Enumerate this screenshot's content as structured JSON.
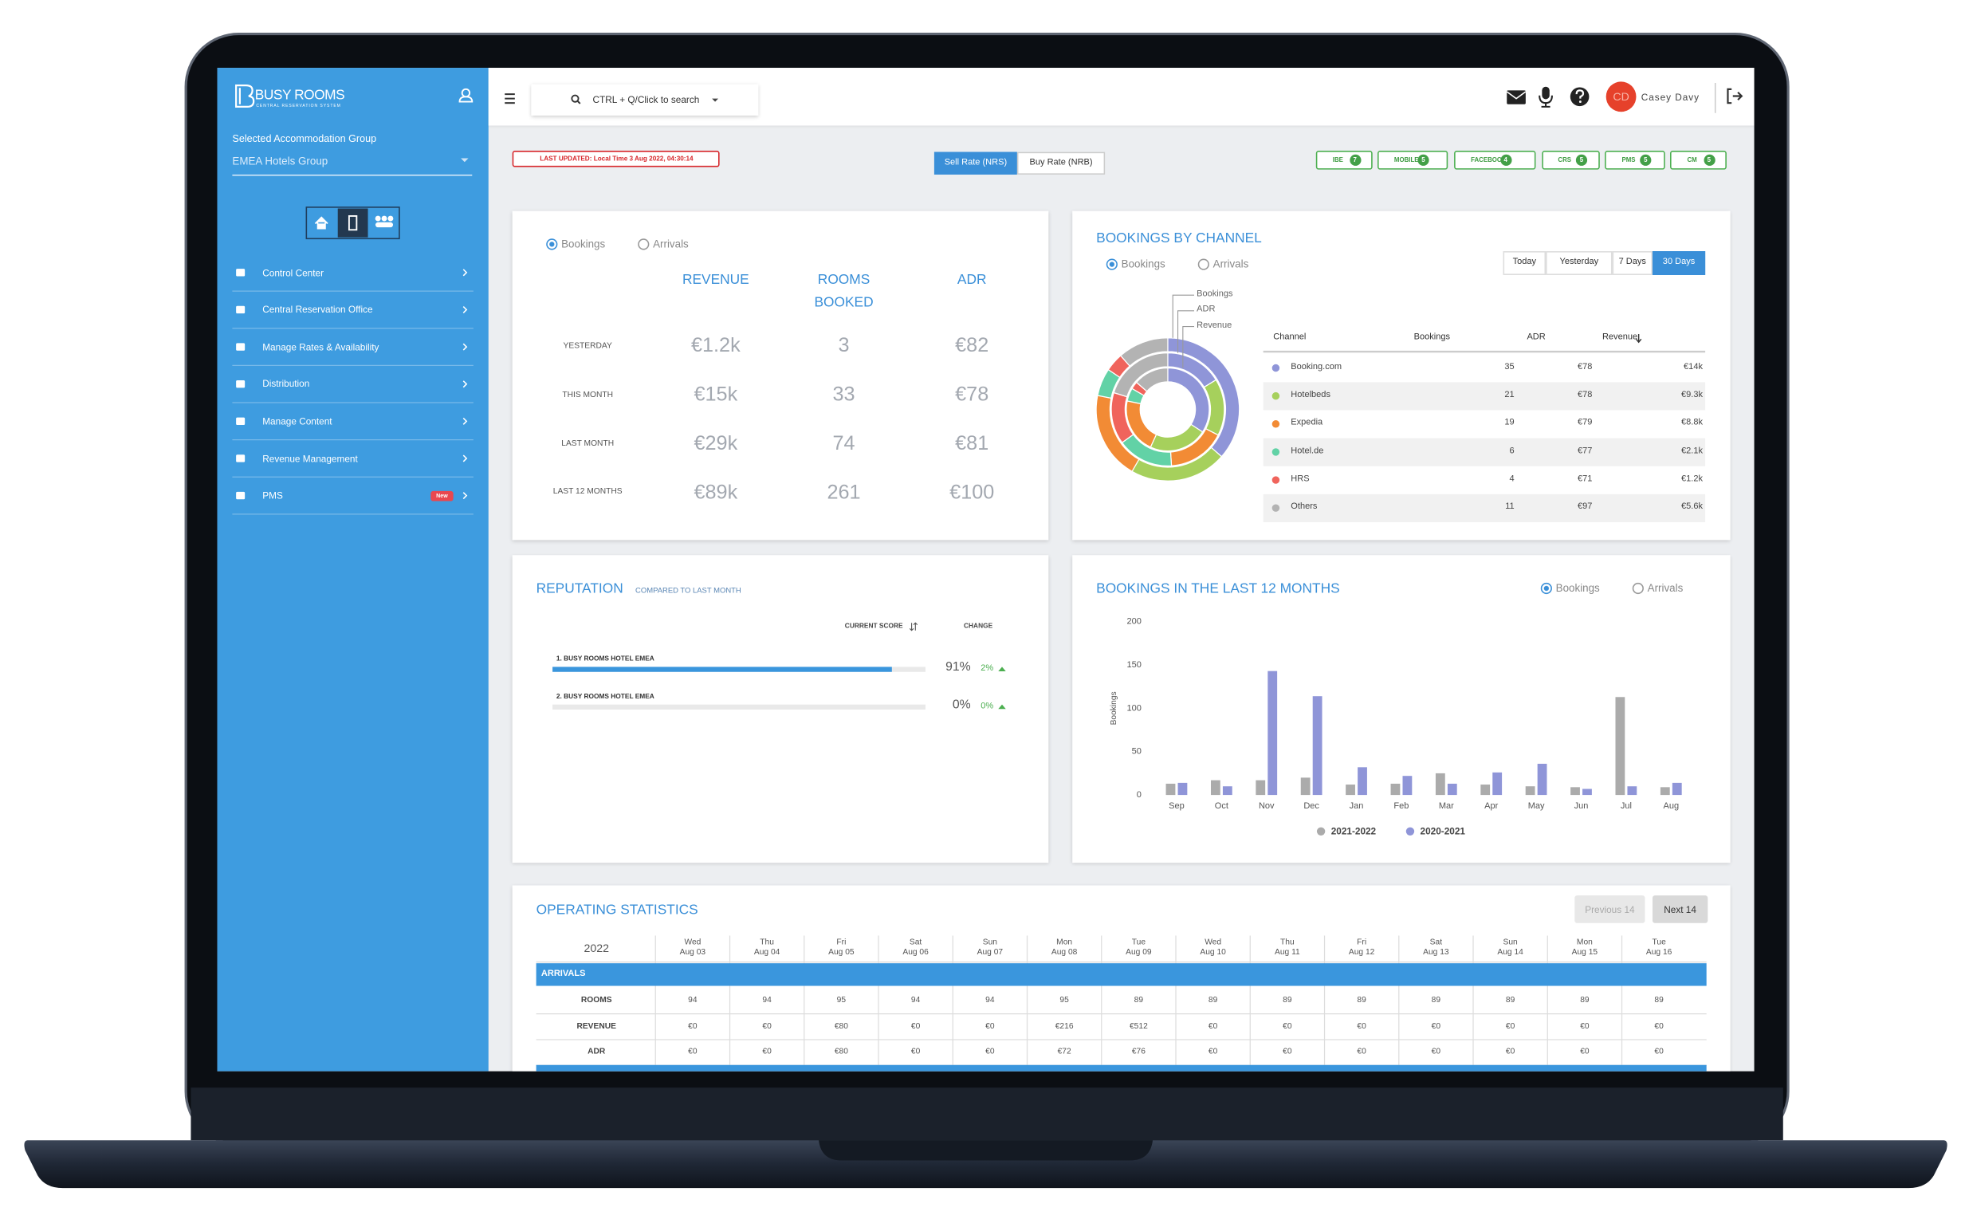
{
  "brand": {
    "name": "BUSY ROOMS",
    "tagline": "CENTRAL RESERVATION SYSTEM"
  },
  "sidebar": {
    "group_label": "Selected Accommodation Group",
    "group_value": "EMEA Hotels Group",
    "menu": [
      "Control Center",
      "Central Reservation Office",
      "Manage Rates & Availability",
      "Distribution",
      "Manage Content",
      "Revenue Management",
      "PMS"
    ],
    "badge": "New"
  },
  "topbar": {
    "search": "CTRL + Q/Click to search",
    "initials": "CD",
    "user": "Casey Davy"
  },
  "toolbar": {
    "last_updated": "LAST UPDATED: Local Time 3 Aug 2022, 04:30:14",
    "rate_tabs": [
      "Sell Rate (NRS)",
      "Buy Rate (NRB)"
    ],
    "channels": [
      {
        "name": "IBE",
        "count": 7
      },
      {
        "name": "MOBILE",
        "count": 5
      },
      {
        "name": "FACEBOOK",
        "count": 4
      },
      {
        "name": "CRS",
        "count": 5
      },
      {
        "name": "PMS",
        "count": 5
      },
      {
        "name": "CM",
        "count": 5
      }
    ]
  },
  "summary": {
    "radios": [
      "Bookings",
      "Arrivals"
    ],
    "columns": [
      "REVENUE",
      "ROOMS BOOKED",
      "ADR"
    ],
    "rows": [
      {
        "label": "YESTERDAY",
        "cells": [
          "€1.2k",
          "3",
          "€82"
        ]
      },
      {
        "label": "THIS MONTH",
        "cells": [
          "€15k",
          "33",
          "€78"
        ]
      },
      {
        "label": "LAST MONTH",
        "cells": [
          "€29k",
          "74",
          "€81"
        ]
      },
      {
        "label": "LAST 12 MONTHS",
        "cells": [
          "€89k",
          "261",
          "€100"
        ]
      }
    ]
  },
  "channels_panel": {
    "title": "BOOKINGS BY CHANNEL",
    "radios": [
      "Bookings",
      "Arrivals"
    ],
    "periods": [
      "Today",
      "Yesterday",
      "7 Days",
      "30 Days"
    ],
    "ring_labels": [
      "Bookings",
      "ADR",
      "Revenue"
    ],
    "headers": [
      "Channel",
      "Bookings",
      "ADR",
      "Revenue"
    ],
    "names": [
      "Booking.com",
      "Hotelbeds",
      "Expedia",
      "Hotel.de",
      "HRS",
      "Others"
    ],
    "colors": [
      "#8f95d8",
      "#a6d05c",
      "#f28b35",
      "#62d2a6",
      "#f0645c",
      "#b3b3b3"
    ],
    "bookings": [
      35,
      21,
      19,
      6,
      4,
      11
    ],
    "adr": [
      78,
      78,
      79,
      77,
      71,
      97
    ],
    "adr_labels": [
      "€78",
      "€78",
      "€79",
      "€77",
      "€71",
      "€97"
    ],
    "revenue": [
      14000,
      9300,
      8800,
      2100,
      1200,
      5600
    ],
    "revenue_labels": [
      "€14k",
      "€9.3k",
      "€8.8k",
      "€2.1k",
      "€1.2k",
      "€5.6k"
    ]
  },
  "reputation": {
    "title": "REPUTATION",
    "subtitle": "COMPARED TO LAST MONTH",
    "headers": [
      "CURRENT SCORE",
      "CHANGE"
    ],
    "hotels": [
      {
        "name": "1. BUSY ROOMS HOTEL EMEA",
        "score": 91,
        "score_label": "91%",
        "change": "2%"
      },
      {
        "name": "2. BUSY ROOMS HOTEL EMEA",
        "score": 0,
        "score_label": "0%",
        "change": "0%"
      }
    ]
  },
  "bookings_chart": {
    "type": "bar",
    "title": "BOOKINGS IN THE LAST 12 MONTHS",
    "radios": [
      "Bookings",
      "Arrivals"
    ],
    "y_label": "Bookings",
    "categories": [
      "Sep",
      "Oct",
      "Nov",
      "Dec",
      "Jan",
      "Feb",
      "Mar",
      "Apr",
      "May",
      "Jun",
      "Jul",
      "Aug"
    ],
    "series": [
      {
        "name": "2021-2022",
        "color": "#ababab",
        "values": [
          13,
          17,
          17,
          20,
          12,
          13,
          25,
          12,
          10,
          9,
          113,
          9
        ]
      },
      {
        "name": "2020-2021",
        "color": "#8f95d8",
        "values": [
          14,
          10,
          143,
          114,
          32,
          22,
          13,
          26,
          36,
          7,
          10,
          14
        ]
      }
    ],
    "ylim": [
      0,
      200
    ],
    "yticks": [
      0,
      50,
      100,
      150,
      200
    ],
    "grid": false
  },
  "operating": {
    "title": "OPERATING STATISTICS",
    "buttons": [
      "Previous 14",
      "Next 14"
    ],
    "year": "2022",
    "days": [
      {
        "day": "Wed",
        "date": "Aug 03"
      },
      {
        "day": "Thu",
        "date": "Aug 04"
      },
      {
        "day": "Fri",
        "date": "Aug 05"
      },
      {
        "day": "Sat",
        "date": "Aug 06"
      },
      {
        "day": "Sun",
        "date": "Aug 07"
      },
      {
        "day": "Mon",
        "date": "Aug 08"
      },
      {
        "day": "Tue",
        "date": "Aug 09"
      },
      {
        "day": "Wed",
        "date": "Aug 10"
      },
      {
        "day": "Thu",
        "date": "Aug 11"
      },
      {
        "day": "Fri",
        "date": "Aug 12"
      },
      {
        "day": "Sat",
        "date": "Aug 13"
      },
      {
        "day": "Sun",
        "date": "Aug 14"
      },
      {
        "day": "Mon",
        "date": "Aug 15"
      },
      {
        "day": "Tue",
        "date": "Aug 16"
      }
    ],
    "section": "ARRIVALS",
    "rows": [
      {
        "label": "ROOMS",
        "cells": [
          "94",
          "94",
          "95",
          "94",
          "94",
          "95",
          "89",
          "89",
          "89",
          "89",
          "89",
          "89",
          "89",
          "89"
        ]
      },
      {
        "label": "REVENUE",
        "cells": [
          "€0",
          "€0",
          "€80",
          "€0",
          "€0",
          "€216",
          "€512",
          "€0",
          "€0",
          "€0",
          "€0",
          "€0",
          "€0",
          "€0"
        ]
      },
      {
        "label": "ADR",
        "cells": [
          "€0",
          "€0",
          "€80",
          "€0",
          "€0",
          "€72",
          "€76",
          "€0",
          "€0",
          "€0",
          "€0",
          "€0",
          "€0",
          "€0"
        ]
      }
    ]
  }
}
